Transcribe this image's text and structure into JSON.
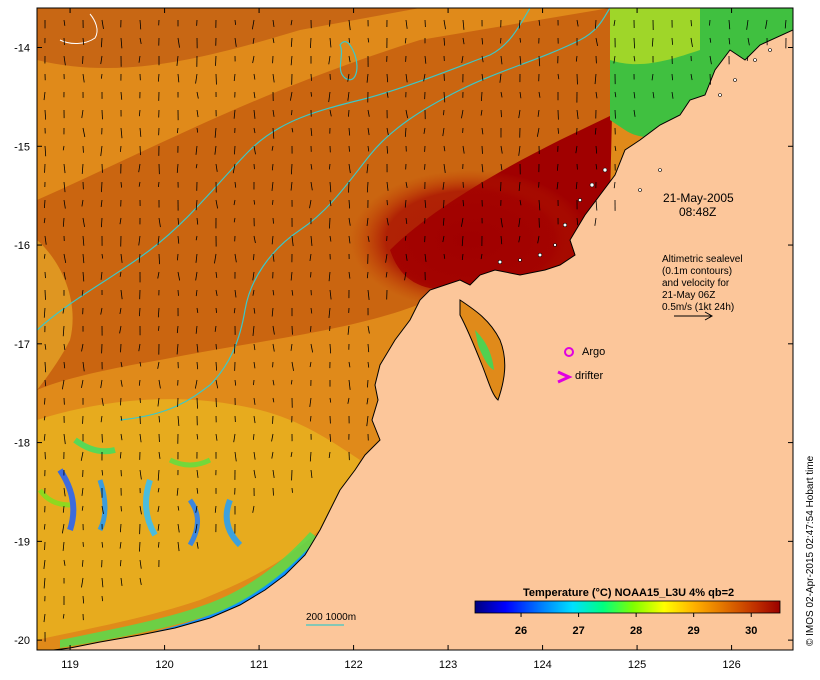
{
  "map": {
    "date": "21-May-2005",
    "time": "08:48Z",
    "altimetry_note": [
      "Altimetric sealevel",
      "(0.1m contours)",
      "and velocity for",
      "21-May 06Z",
      "0.5m/s (1kt 24h)"
    ],
    "legend_argo": "Argo",
    "legend_drifter": "drifter",
    "bathymetry_legend": "200  1000m",
    "credit": "© IMOS 02-Apr-2015 02:47:54 Hobart time",
    "colors": {
      "land": "#fcc69a",
      "hot": "#a00000",
      "contour": "#3cc8c8",
      "argo_marker": "#e000e0"
    }
  },
  "axes": {
    "lon_ticks": [
      "119",
      "120",
      "121",
      "122",
      "123",
      "124",
      "125",
      "126"
    ],
    "lat_ticks": [
      "-14",
      "-15",
      "-16",
      "-17",
      "-18",
      "-19",
      "-20"
    ],
    "lon_range": [
      118.65,
      126.65
    ],
    "lat_range": [
      -20.1,
      -13.6
    ]
  },
  "colorbar": {
    "title": "Temperature (°C) NOAA15_L3U 4% qb=2",
    "ticks": [
      "26",
      "27",
      "28",
      "29",
      "30"
    ],
    "range": [
      25.2,
      30.5
    ]
  }
}
